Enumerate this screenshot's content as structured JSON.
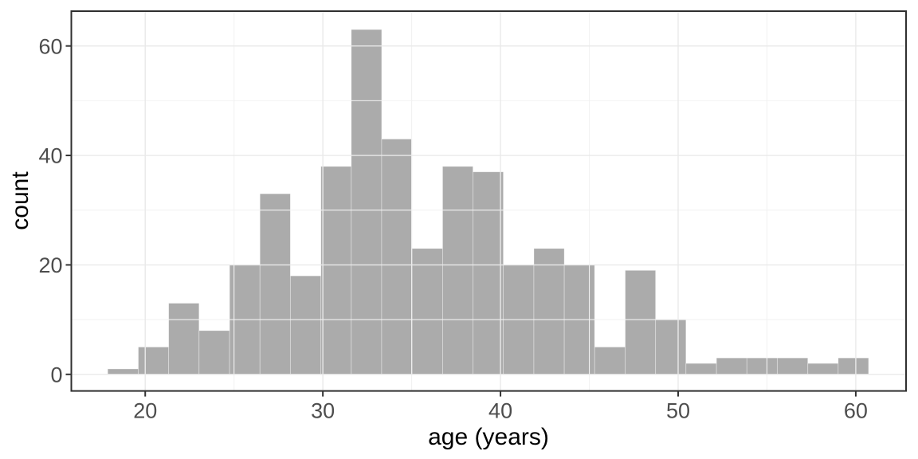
{
  "chart_data": {
    "type": "bar",
    "subtype": "histogram",
    "title": "",
    "xlabel": "age (years)",
    "ylabel": "count",
    "bin_edges": [
      17.89,
      19.61,
      21.32,
      23.03,
      24.75,
      26.46,
      28.17,
      29.89,
      31.6,
      33.31,
      35.02,
      36.74,
      38.45,
      40.16,
      41.88,
      43.59,
      45.3,
      47.02,
      48.73,
      50.44,
      52.16,
      53.87,
      55.58,
      57.3,
      59.01,
      60.72
    ],
    "counts": [
      1,
      5,
      13,
      8,
      20,
      33,
      18,
      38,
      63,
      43,
      23,
      38,
      37,
      20,
      23,
      20,
      5,
      19,
      10,
      2,
      3,
      3,
      3,
      2,
      3
    ],
    "total_n": 453,
    "max_count": 63,
    "xlim": [
      15.84,
      62.83
    ],
    "ylim": [
      -3.03,
      66.36
    ],
    "x_ticks": [
      20,
      30,
      40,
      50,
      60
    ],
    "x_tick_labels": [
      "20",
      "30",
      "40",
      "50",
      "60"
    ],
    "x_minor_ticks": [
      25,
      35,
      45,
      55
    ],
    "y_ticks": [
      0,
      20,
      40,
      60
    ],
    "y_tick_labels": [
      "0",
      "20",
      "40",
      "60"
    ],
    "y_minor_ticks": [
      10,
      30,
      50
    ],
    "grid": "major and minor, drawn on top of bars",
    "legend": "none"
  },
  "style": {
    "background": "#ffffff",
    "bar_fill": "#ababab",
    "bar_seam": "rgba(255,255,255,0.45)",
    "grid_major": "#e9e9e9",
    "grid_minor": "#f2f2f2",
    "panel_border": "#2f2f2f",
    "tick_mark": "#333333",
    "tick_label_color": "#4d4d4d",
    "axis_title_color": "#000000"
  }
}
